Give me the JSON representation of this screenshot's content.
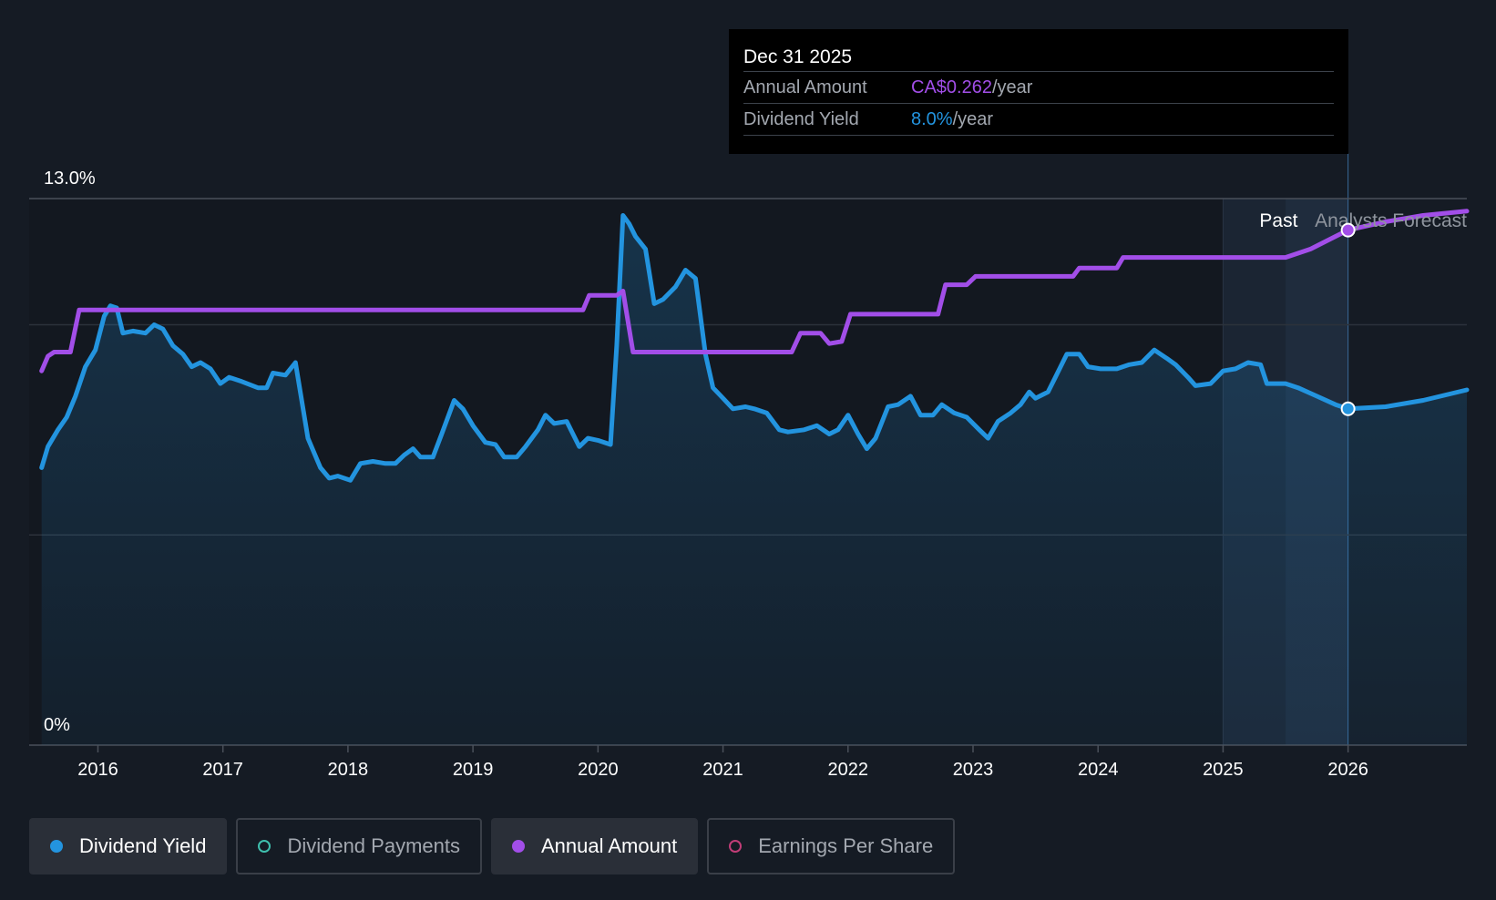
{
  "colors": {
    "background": "#151b24",
    "yield": "#2394df",
    "annual": "#a24ee8",
    "payments": "#3fbfad",
    "eps": "#c13d77",
    "grid": "#2c323b",
    "axis": "#4a505a"
  },
  "tooltip": {
    "date": "Dec 31 2025",
    "annual_label": "Annual Amount",
    "annual_value": "CA$0.262",
    "annual_unit": "/year",
    "yield_label": "Dividend Yield",
    "yield_value": "8.0%",
    "yield_unit": "/year"
  },
  "legend": [
    {
      "label": "Dividend Yield",
      "active": true,
      "color": "#2394df",
      "filled": true
    },
    {
      "label": "Dividend Payments",
      "active": false,
      "color": "#3fbfad",
      "filled": false
    },
    {
      "label": "Annual Amount",
      "active": true,
      "color": "#a24ee8",
      "filled": true
    },
    {
      "label": "Earnings Per Share",
      "active": false,
      "color": "#c13d77",
      "filled": false
    }
  ],
  "chart_data": {
    "type": "line",
    "xlim": [
      2015.45,
      2026.95
    ],
    "ylim": [
      0,
      13.0
    ],
    "y_tick_labels": [
      "13.0%",
      "0%"
    ],
    "x_ticks": [
      2016,
      2017,
      2018,
      2019,
      2020,
      2021,
      2022,
      2023,
      2024,
      2025,
      2026
    ],
    "past_label": "Past",
    "forecast_label": "Analysts Forecast",
    "forecast_start": 2025.0,
    "past_band_split": 2025.5,
    "cursor_x": 2026.0,
    "grid_values": [
      13.0,
      10.0,
      5.0
    ],
    "series": [
      {
        "name": "Dividend Yield",
        "color": "#2394df",
        "points": [
          [
            2015.55,
            6.6
          ],
          [
            2015.6,
            7.1
          ],
          [
            2015.68,
            7.5
          ],
          [
            2015.75,
            7.8
          ],
          [
            2015.82,
            8.3
          ],
          [
            2015.9,
            9.0
          ],
          [
            2015.98,
            9.4
          ],
          [
            2016.05,
            10.2
          ],
          [
            2016.1,
            10.45
          ],
          [
            2016.15,
            10.4
          ],
          [
            2016.2,
            9.8
          ],
          [
            2016.28,
            9.85
          ],
          [
            2016.38,
            9.8
          ],
          [
            2016.45,
            10.0
          ],
          [
            2016.52,
            9.9
          ],
          [
            2016.6,
            9.5
          ],
          [
            2016.68,
            9.3
          ],
          [
            2016.75,
            9.0
          ],
          [
            2016.82,
            9.1
          ],
          [
            2016.9,
            8.95
          ],
          [
            2016.98,
            8.6
          ],
          [
            2017.05,
            8.75
          ],
          [
            2017.15,
            8.65
          ],
          [
            2017.28,
            8.5
          ],
          [
            2017.35,
            8.5
          ],
          [
            2017.4,
            8.85
          ],
          [
            2017.5,
            8.8
          ],
          [
            2017.58,
            9.1
          ],
          [
            2017.68,
            7.3
          ],
          [
            2017.78,
            6.6
          ],
          [
            2017.85,
            6.35
          ],
          [
            2017.92,
            6.4
          ],
          [
            2018.02,
            6.3
          ],
          [
            2018.1,
            6.7
          ],
          [
            2018.2,
            6.75
          ],
          [
            2018.3,
            6.7
          ],
          [
            2018.38,
            6.7
          ],
          [
            2018.45,
            6.9
          ],
          [
            2018.52,
            7.05
          ],
          [
            2018.58,
            6.85
          ],
          [
            2018.68,
            6.85
          ],
          [
            2018.75,
            7.4
          ],
          [
            2018.85,
            8.2
          ],
          [
            2018.92,
            8.0
          ],
          [
            2019.0,
            7.6
          ],
          [
            2019.1,
            7.2
          ],
          [
            2019.18,
            7.15
          ],
          [
            2019.25,
            6.85
          ],
          [
            2019.35,
            6.85
          ],
          [
            2019.42,
            7.1
          ],
          [
            2019.52,
            7.5
          ],
          [
            2019.58,
            7.85
          ],
          [
            2019.65,
            7.65
          ],
          [
            2019.75,
            7.7
          ],
          [
            2019.85,
            7.1
          ],
          [
            2019.92,
            7.3
          ],
          [
            2020.0,
            7.25
          ],
          [
            2020.1,
            7.15
          ],
          [
            2020.15,
            9.5
          ],
          [
            2020.2,
            12.6
          ],
          [
            2020.25,
            12.4
          ],
          [
            2020.3,
            12.1
          ],
          [
            2020.38,
            11.8
          ],
          [
            2020.45,
            10.5
          ],
          [
            2020.52,
            10.6
          ],
          [
            2020.62,
            10.9
          ],
          [
            2020.7,
            11.3
          ],
          [
            2020.78,
            11.1
          ],
          [
            2020.86,
            9.3
          ],
          [
            2020.92,
            8.5
          ],
          [
            2021.0,
            8.25
          ],
          [
            2021.08,
            8.0
          ],
          [
            2021.18,
            8.05
          ],
          [
            2021.25,
            8.0
          ],
          [
            2021.35,
            7.9
          ],
          [
            2021.45,
            7.5
          ],
          [
            2021.52,
            7.45
          ],
          [
            2021.65,
            7.5
          ],
          [
            2021.75,
            7.6
          ],
          [
            2021.85,
            7.4
          ],
          [
            2021.92,
            7.5
          ],
          [
            2022.0,
            7.85
          ],
          [
            2022.08,
            7.4
          ],
          [
            2022.15,
            7.05
          ],
          [
            2022.22,
            7.3
          ],
          [
            2022.32,
            8.05
          ],
          [
            2022.4,
            8.1
          ],
          [
            2022.5,
            8.3
          ],
          [
            2022.58,
            7.85
          ],
          [
            2022.68,
            7.85
          ],
          [
            2022.75,
            8.1
          ],
          [
            2022.85,
            7.9
          ],
          [
            2022.95,
            7.8
          ],
          [
            2023.05,
            7.5
          ],
          [
            2023.12,
            7.3
          ],
          [
            2023.2,
            7.7
          ],
          [
            2023.3,
            7.9
          ],
          [
            2023.38,
            8.1
          ],
          [
            2023.45,
            8.4
          ],
          [
            2023.5,
            8.25
          ],
          [
            2023.6,
            8.4
          ],
          [
            2023.65,
            8.7
          ],
          [
            2023.75,
            9.3
          ],
          [
            2023.85,
            9.3
          ],
          [
            2023.92,
            9.0
          ],
          [
            2024.02,
            8.95
          ],
          [
            2024.15,
            8.95
          ],
          [
            2024.25,
            9.05
          ],
          [
            2024.35,
            9.1
          ],
          [
            2024.45,
            9.4
          ],
          [
            2024.55,
            9.2
          ],
          [
            2024.62,
            9.05
          ],
          [
            2024.72,
            8.75
          ],
          [
            2024.78,
            8.55
          ],
          [
            2024.9,
            8.6
          ],
          [
            2025.0,
            8.9
          ],
          [
            2025.1,
            8.95
          ],
          [
            2025.2,
            9.1
          ],
          [
            2025.3,
            9.05
          ],
          [
            2025.35,
            8.6
          ],
          [
            2025.5,
            8.6
          ],
          [
            2025.6,
            8.5
          ],
          [
            2025.75,
            8.3
          ],
          [
            2025.9,
            8.1
          ],
          [
            2026.0,
            8.0
          ],
          [
            2026.3,
            8.05
          ],
          [
            2026.6,
            8.2
          ],
          [
            2026.95,
            8.45
          ]
        ]
      },
      {
        "name": "Annual Amount",
        "color": "#a24ee8",
        "points": [
          [
            2015.55,
            8.9
          ],
          [
            2015.6,
            9.25
          ],
          [
            2015.65,
            9.35
          ],
          [
            2015.78,
            9.35
          ],
          [
            2015.85,
            10.35
          ],
          [
            2017.0,
            10.35
          ],
          [
            2018.0,
            10.35
          ],
          [
            2019.0,
            10.35
          ],
          [
            2019.88,
            10.35
          ],
          [
            2019.93,
            10.7
          ],
          [
            2020.15,
            10.7
          ],
          [
            2020.2,
            10.8
          ],
          [
            2020.28,
            9.35
          ],
          [
            2021.0,
            9.35
          ],
          [
            2021.55,
            9.35
          ],
          [
            2021.62,
            9.8
          ],
          [
            2021.78,
            9.8
          ],
          [
            2021.85,
            9.55
          ],
          [
            2021.95,
            9.6
          ],
          [
            2022.02,
            10.25
          ],
          [
            2022.5,
            10.25
          ],
          [
            2022.72,
            10.25
          ],
          [
            2022.78,
            10.95
          ],
          [
            2022.95,
            10.95
          ],
          [
            2023.02,
            11.15
          ],
          [
            2023.5,
            11.15
          ],
          [
            2023.8,
            11.15
          ],
          [
            2023.85,
            11.35
          ],
          [
            2024.15,
            11.35
          ],
          [
            2024.2,
            11.6
          ],
          [
            2025.0,
            11.6
          ],
          [
            2025.5,
            11.6
          ],
          [
            2025.7,
            11.8
          ],
          [
            2025.9,
            12.1
          ],
          [
            2026.0,
            12.25
          ],
          [
            2026.3,
            12.45
          ],
          [
            2026.6,
            12.6
          ],
          [
            2026.95,
            12.7
          ]
        ]
      }
    ],
    "highlight_points": [
      {
        "series": "Annual Amount",
        "x": 2026.0,
        "y": 12.25
      },
      {
        "series": "Dividend Yield",
        "x": 2026.0,
        "y": 8.0
      }
    ]
  }
}
